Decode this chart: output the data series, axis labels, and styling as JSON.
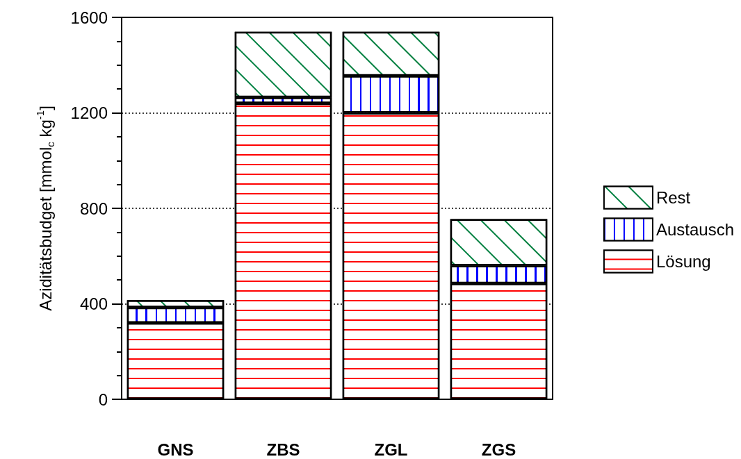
{
  "chart_data": {
    "type": "bar",
    "stacked": true,
    "ylabel": "Aziditätsbudget [mmol$_{c}$ kg$^{-1}$]",
    "categories": [
      "GNS",
      "ZBS",
      "ZGL",
      "ZGS"
    ],
    "series": [
      {
        "name": "Lösung",
        "color": "#ff0000",
        "values": [
          320,
          1240,
          1200,
          485
        ]
      },
      {
        "name": "Austausch",
        "color": "#0000ff",
        "values": [
          65,
          25,
          155,
          75
        ]
      },
      {
        "name": "Rest",
        "color": "#008040",
        "values": [
          30,
          275,
          185,
          195
        ]
      }
    ],
    "ylim": [
      0,
      1600
    ],
    "yticks": [
      0,
      {
        "value": 100,
        "label": null
      },
      {
        "value": 200,
        "label": null
      },
      {
        "value": 300,
        "label": null
      },
      400,
      {
        "value": 500,
        "label": null
      },
      {
        "value": 600,
        "label": null
      },
      {
        "value": 700,
        "label": null
      },
      800,
      {
        "value": 900,
        "label": null
      },
      {
        "value": 1000,
        "label": null
      },
      {
        "value": 1100,
        "label": null
      },
      1200,
      {
        "value": 1300,
        "label": null
      },
      {
        "value": 1400,
        "label": null
      },
      {
        "value": 1500,
        "label": null
      },
      1600
    ],
    "grid": "y",
    "legend": "right"
  }
}
